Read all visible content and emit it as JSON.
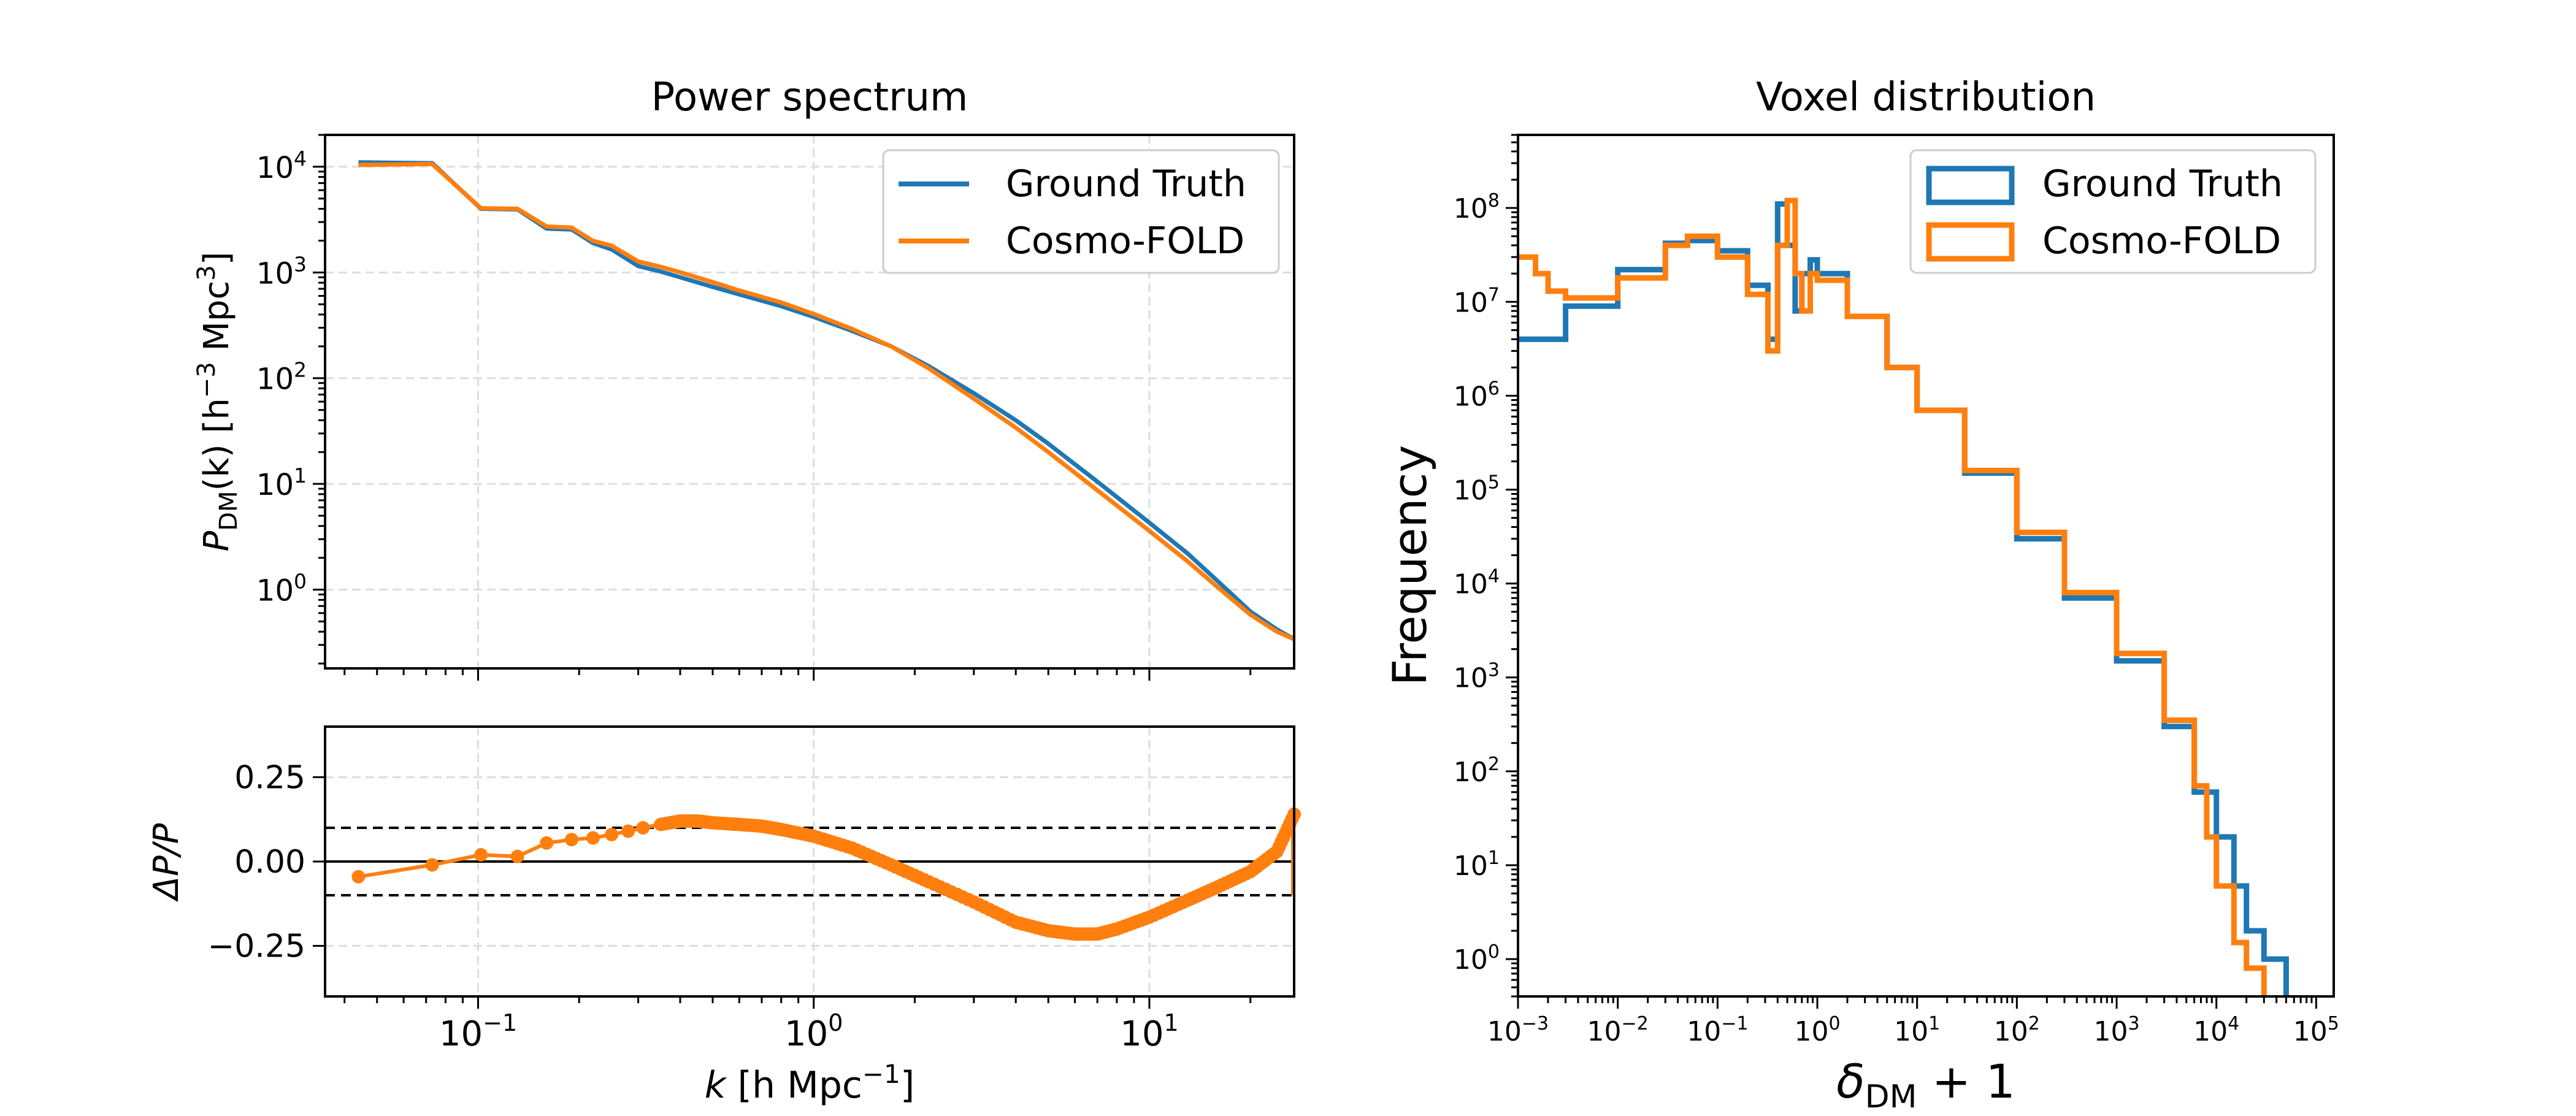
{
  "colors": {
    "ground_truth": "#1f77b4",
    "cosmo_fold": "#ff7f0e",
    "grid": "#dddddd",
    "axis": "#000000"
  },
  "chart_data": [
    {
      "id": "power_spectrum",
      "type": "line",
      "title": "Power spectrum",
      "ylabel": {
        "base": "P",
        "sub": "DM",
        "rest": "(k) [h",
        "sup1": "−3",
        "unit": " Mpc",
        "sup2": "3",
        "close": "]"
      },
      "xscale": "log",
      "yscale": "log",
      "xlim": [
        0.035,
        27
      ],
      "ylim": [
        0.18,
        20000
      ],
      "yticks": [
        1,
        10,
        100,
        1000,
        10000
      ],
      "ytick_labels": [
        {
          "base": "10",
          "exp": "0"
        },
        {
          "base": "10",
          "exp": "1"
        },
        {
          "base": "10",
          "exp": "2"
        },
        {
          "base": "10",
          "exp": "3"
        },
        {
          "base": "10",
          "exp": "4"
        }
      ],
      "grid": true,
      "legend": {
        "placement": "top-right",
        "entries": [
          "Ground Truth",
          "Cosmo-FOLD"
        ]
      },
      "series": [
        {
          "name": "Ground Truth",
          "color_key": "ground_truth",
          "x": [
            0.044,
            0.073,
            0.102,
            0.131,
            0.16,
            0.19,
            0.22,
            0.25,
            0.3,
            0.35,
            0.4,
            0.5,
            0.6,
            0.8,
            1.0,
            1.3,
            1.7,
            2.2,
            3,
            4,
            5,
            7,
            10,
            13,
            16,
            20,
            24,
            27
          ],
          "y": [
            11000,
            10800,
            4000,
            3950,
            2600,
            2550,
            1900,
            1650,
            1150,
            1020,
            900,
            730,
            620,
            480,
            380,
            280,
            200,
            130,
            72,
            40,
            24,
            10.5,
            4.3,
            2.2,
            1.2,
            0.62,
            0.42,
            0.34
          ]
        },
        {
          "name": "Cosmo-FOLD",
          "color_key": "cosmo_fold",
          "x": [
            0.044,
            0.073,
            0.102,
            0.131,
            0.16,
            0.19,
            0.22,
            0.25,
            0.3,
            0.35,
            0.4,
            0.5,
            0.6,
            0.8,
            1.0,
            1.3,
            1.7,
            2.2,
            3,
            4,
            5,
            7,
            10,
            13,
            16,
            20,
            24,
            27
          ],
          "y": [
            10400,
            10600,
            4050,
            4000,
            2720,
            2650,
            1990,
            1790,
            1270,
            1130,
            1005,
            810,
            675,
            520,
            405,
            292,
            200,
            124,
            64,
            34,
            20,
            8.7,
            3.6,
            1.85,
            1.05,
            0.58,
            0.4,
            0.34
          ]
        }
      ]
    },
    {
      "id": "ratio",
      "type": "line",
      "xlabel": {
        "k": "k",
        "rest": " [h Mpc",
        "sup": "−1",
        "close": "]"
      },
      "ylabel": "ΔP/P",
      "xscale": "log",
      "xlim": [
        0.035,
        27
      ],
      "ylim": [
        -0.4,
        0.4
      ],
      "yticks": [
        -0.25,
        0,
        0.25
      ],
      "ytick_labels": [
        "−0.25",
        "0.00",
        "0.25"
      ],
      "xtick_labels": [
        {
          "base": "10",
          "exp": "−1"
        },
        {
          "base": "10",
          "exp": "0"
        },
        {
          "base": "10",
          "exp": "1"
        }
      ],
      "xticks": [
        0.1,
        1,
        10
      ],
      "hlines": {
        "solid": 0,
        "dashed": [
          0.1,
          -0.1
        ]
      },
      "grid": true,
      "series": [
        {
          "name": "Cosmo-FOLD",
          "color_key": "cosmo_fold",
          "x": [
            0.044,
            0.073,
            0.102,
            0.131,
            0.16,
            0.19,
            0.22,
            0.25,
            0.28,
            0.31,
            0.35,
            0.4,
            0.45,
            0.5,
            0.6,
            0.7,
            0.8,
            1.0,
            1.3,
            1.7,
            2.2,
            3,
            4,
            5,
            6,
            7,
            8,
            10,
            13,
            16,
            20,
            24,
            27
          ],
          "y": [
            -0.045,
            -0.01,
            0.02,
            0.015,
            0.055,
            0.065,
            0.07,
            0.08,
            0.09,
            0.1,
            0.11,
            0.12,
            0.12,
            0.115,
            0.11,
            0.105,
            0.095,
            0.075,
            0.04,
            -0.01,
            -0.06,
            -0.12,
            -0.18,
            -0.205,
            -0.215,
            -0.215,
            -0.2,
            -0.165,
            -0.115,
            -0.075,
            -0.03,
            0.03,
            0.14
          ]
        }
      ]
    },
    {
      "id": "voxel_distribution",
      "type": "histogram",
      "title": "Voxel distribution",
      "xlabel": {
        "delta": "δ",
        "sub": "DM",
        "rest": " + 1"
      },
      "ylabel": "Frequency",
      "xscale": "log",
      "yscale": "log",
      "xlim": [
        0.001,
        150000
      ],
      "ylim": [
        0.4,
        600000000
      ],
      "xticks": [
        0.001,
        0.01,
        0.1,
        1,
        10,
        100,
        1000,
        10000,
        100000
      ],
      "xtick_labels": [
        {
          "base": "10",
          "exp": "−3"
        },
        {
          "base": "10",
          "exp": "−2"
        },
        {
          "base": "10",
          "exp": "−1"
        },
        {
          "base": "10",
          "exp": "0"
        },
        {
          "base": "10",
          "exp": "1"
        },
        {
          "base": "10",
          "exp": "2"
        },
        {
          "base": "10",
          "exp": "3"
        },
        {
          "base": "10",
          "exp": "4"
        },
        {
          "base": "10",
          "exp": "5"
        }
      ],
      "yticks": [
        1,
        10,
        100,
        1000,
        10000,
        100000,
        1000000,
        10000000,
        100000000
      ],
      "ytick_labels": [
        {
          "base": "10",
          "exp": "0"
        },
        {
          "base": "10",
          "exp": "1"
        },
        {
          "base": "10",
          "exp": "2"
        },
        {
          "base": "10",
          "exp": "3"
        },
        {
          "base": "10",
          "exp": "4"
        },
        {
          "base": "10",
          "exp": "5"
        },
        {
          "base": "10",
          "exp": "6"
        },
        {
          "base": "10",
          "exp": "7"
        },
        {
          "base": "10",
          "exp": "8"
        }
      ],
      "legend": {
        "placement": "top-right",
        "entries": [
          "Ground Truth",
          "Cosmo-FOLD"
        ]
      },
      "series": [
        {
          "name": "Ground Truth",
          "color_key": "ground_truth",
          "x": [
            0.001,
            0.003,
            0.01,
            0.03,
            0.05,
            0.1,
            0.2,
            0.32,
            0.4,
            0.5,
            0.6,
            0.7,
            0.85,
            1,
            2,
            5,
            10,
            30,
            100,
            300,
            1000,
            3000,
            6000,
            10000,
            15000,
            20000,
            30000,
            40000,
            50000
          ],
          "y": [
            4000000,
            9000000,
            22000000,
            42000000,
            45000000,
            35000000,
            15000000,
            4000000,
            110000000,
            40000000,
            8000000,
            20000000,
            28000000,
            20000000,
            7000000,
            2000000,
            700000,
            150000,
            30000,
            7000,
            1500,
            300,
            60,
            20,
            6,
            2,
            1,
            1,
            0.4
          ]
        },
        {
          "name": "Cosmo-FOLD",
          "color_key": "cosmo_fold",
          "x": [
            0.001,
            0.0015,
            0.002,
            0.003,
            0.01,
            0.03,
            0.05,
            0.1,
            0.2,
            0.32,
            0.4,
            0.5,
            0.6,
            0.7,
            0.85,
            1,
            2,
            5,
            10,
            30,
            100,
            300,
            1000,
            3000,
            6000,
            8000,
            10000,
            15000,
            20000,
            30000
          ],
          "y": [
            30000000,
            20000000,
            13000000,
            11000000,
            18000000,
            40000000,
            50000000,
            30000000,
            12000000,
            3000000,
            40000000,
            120000000,
            20000000,
            8000000,
            20000000,
            17000000,
            7000000,
            2000000,
            700000,
            160000,
            35000,
            8000,
            1800,
            350,
            70,
            20,
            6,
            1.5,
            0.8,
            0.4
          ]
        }
      ]
    }
  ]
}
